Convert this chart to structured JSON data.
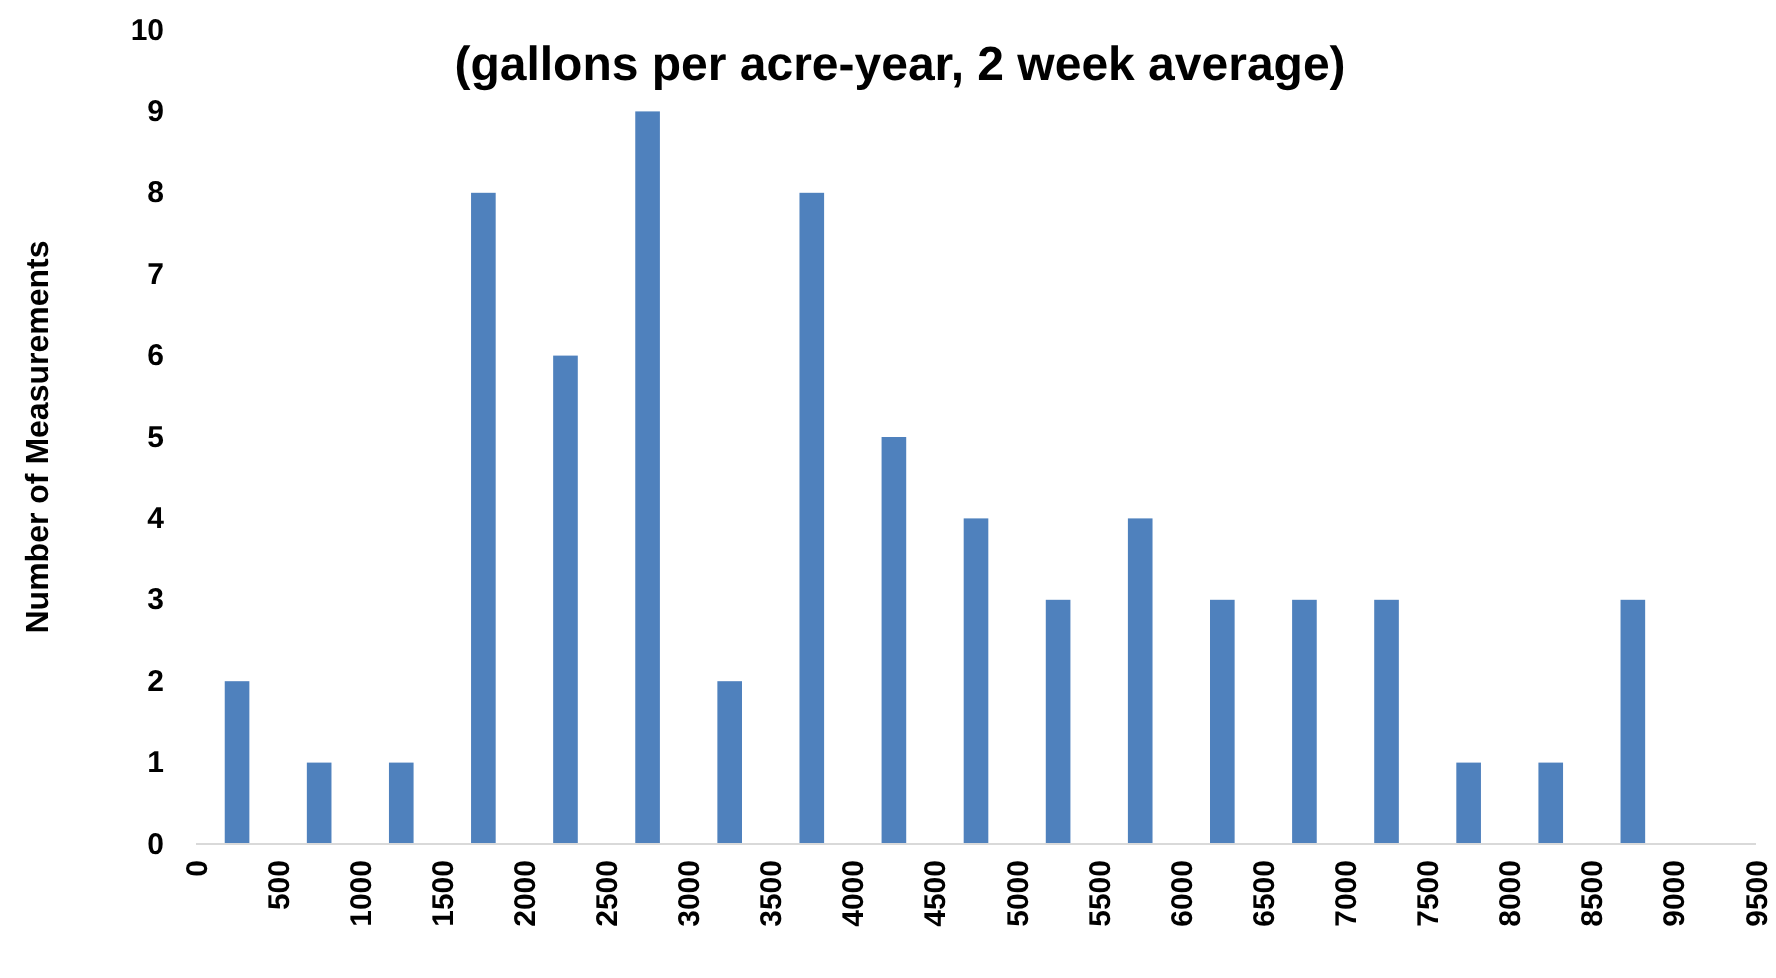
{
  "chart_data": {
    "type": "histogram",
    "title": "(gallons per acre-year, 2 week average)",
    "ylabel": "Number of Measurements",
    "bins": [
      0,
      500,
      1000,
      1500,
      2000,
      2500,
      3000,
      3500,
      4000,
      4500,
      5000,
      5500,
      6000,
      6500,
      7000,
      7500,
      8000,
      8500,
      9000
    ],
    "values": [
      2,
      1,
      1,
      8,
      6,
      9,
      2,
      8,
      5,
      4,
      3,
      4,
      3,
      3,
      3,
      1,
      1,
      3
    ],
    "color": "#4f81bd",
    "xlim": [
      0,
      9500
    ],
    "xticks": [
      0,
      500,
      1000,
      1500,
      2000,
      2500,
      3000,
      3500,
      4000,
      4500,
      5000,
      5500,
      6000,
      6500,
      7000,
      7500,
      8000,
      8500,
      9000,
      9500
    ],
    "ylim": [
      0,
      10
    ],
    "yticks": [
      0,
      1,
      2,
      3,
      4,
      5,
      6,
      7,
      8,
      9,
      10
    ],
    "grid": false
  }
}
